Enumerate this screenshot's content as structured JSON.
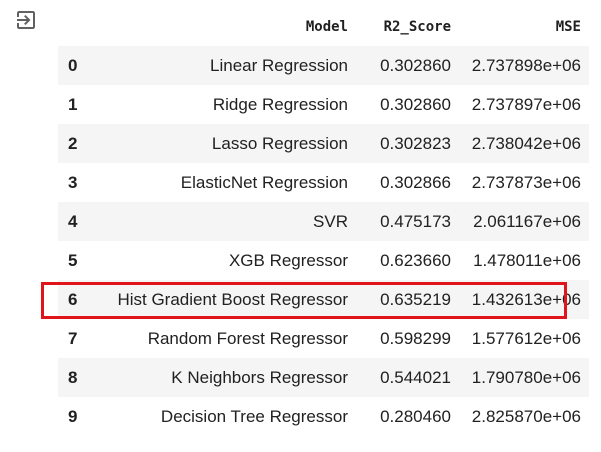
{
  "output_icon": "exit-to-app-icon",
  "table": {
    "columns": [
      "",
      "Model",
      "R2_Score",
      "MSE"
    ],
    "rows": [
      {
        "index": "0",
        "model": "Linear Regression",
        "r2": "0.302860",
        "mse": "2.737898e+06"
      },
      {
        "index": "1",
        "model": "Ridge Regression",
        "r2": "0.302860",
        "mse": "2.737897e+06"
      },
      {
        "index": "2",
        "model": "Lasso Regression",
        "r2": "0.302823",
        "mse": "2.738042e+06"
      },
      {
        "index": "3",
        "model": "ElasticNet Regression",
        "r2": "0.302866",
        "mse": "2.737873e+06"
      },
      {
        "index": "4",
        "model": "SVR",
        "r2": "0.475173",
        "mse": "2.061167e+06"
      },
      {
        "index": "5",
        "model": "XGB Regressor",
        "r2": "0.623660",
        "mse": "1.478011e+06"
      },
      {
        "index": "6",
        "model": "Hist Gradient Boost Regressor",
        "r2": "0.635219",
        "mse": "1.432613e+06"
      },
      {
        "index": "7",
        "model": "Random Forest Regressor",
        "r2": "0.598299",
        "mse": "1.577612e+06"
      },
      {
        "index": "8",
        "model": "K Neighbors Regressor",
        "r2": "0.544021",
        "mse": "1.790780e+06"
      },
      {
        "index": "9",
        "model": "Decision Tree Regressor",
        "r2": "0.280460",
        "mse": "2.825870e+06"
      }
    ]
  },
  "highlight": {
    "row_index": "6",
    "color": "#e0151b"
  }
}
